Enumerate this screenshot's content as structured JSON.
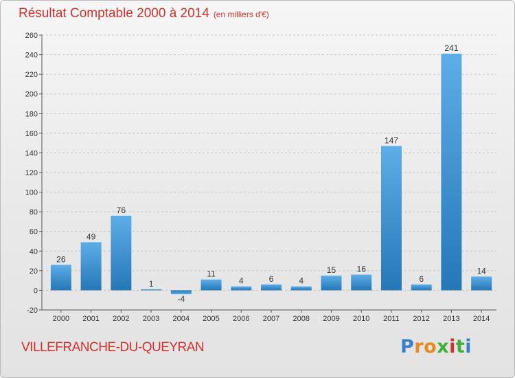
{
  "header": {
    "title": "Résultat Comptable 2000 à 2014",
    "subtitle": "(en milliers d'€)"
  },
  "footer": {
    "city": "VILLEFRANCHE-DU-QUEYRAN",
    "logo": [
      "P",
      "r",
      "o",
      "x",
      "i",
      "t",
      "i"
    ]
  },
  "colors": {
    "title": "#d4302b",
    "bar_light": "#5dade8",
    "bar_dark": "#2577b6",
    "grid": "#c4c4c4",
    "logo": [
      "#3a80c8",
      "#e8891d",
      "#e8891d",
      "#3fae3a",
      "#d4302b",
      "#3fae3a",
      "#3a80c8"
    ]
  },
  "chart_data": {
    "type": "bar",
    "categories": [
      "2000",
      "2001",
      "2002",
      "2003",
      "2004",
      "2005",
      "2006",
      "2007",
      "2008",
      "2009",
      "2010",
      "2011",
      "2012",
      "2013",
      "2014"
    ],
    "values": [
      26,
      49,
      76,
      1,
      -4,
      11,
      4,
      6,
      4,
      15,
      16,
      147,
      6,
      241,
      14
    ],
    "data_labels": [
      "26",
      "49",
      "76",
      "1",
      "-4",
      "11",
      "4",
      "6",
      "4",
      "15",
      "16",
      "147",
      "6",
      "241",
      "14"
    ],
    "ylim": [
      -20,
      260
    ],
    "yticks": [
      -20,
      0,
      20,
      40,
      60,
      80,
      100,
      120,
      140,
      160,
      180,
      200,
      220,
      240,
      260
    ],
    "title": "Résultat Comptable 2000 à 2014",
    "xlabel": "",
    "ylabel": "",
    "grid": true
  }
}
